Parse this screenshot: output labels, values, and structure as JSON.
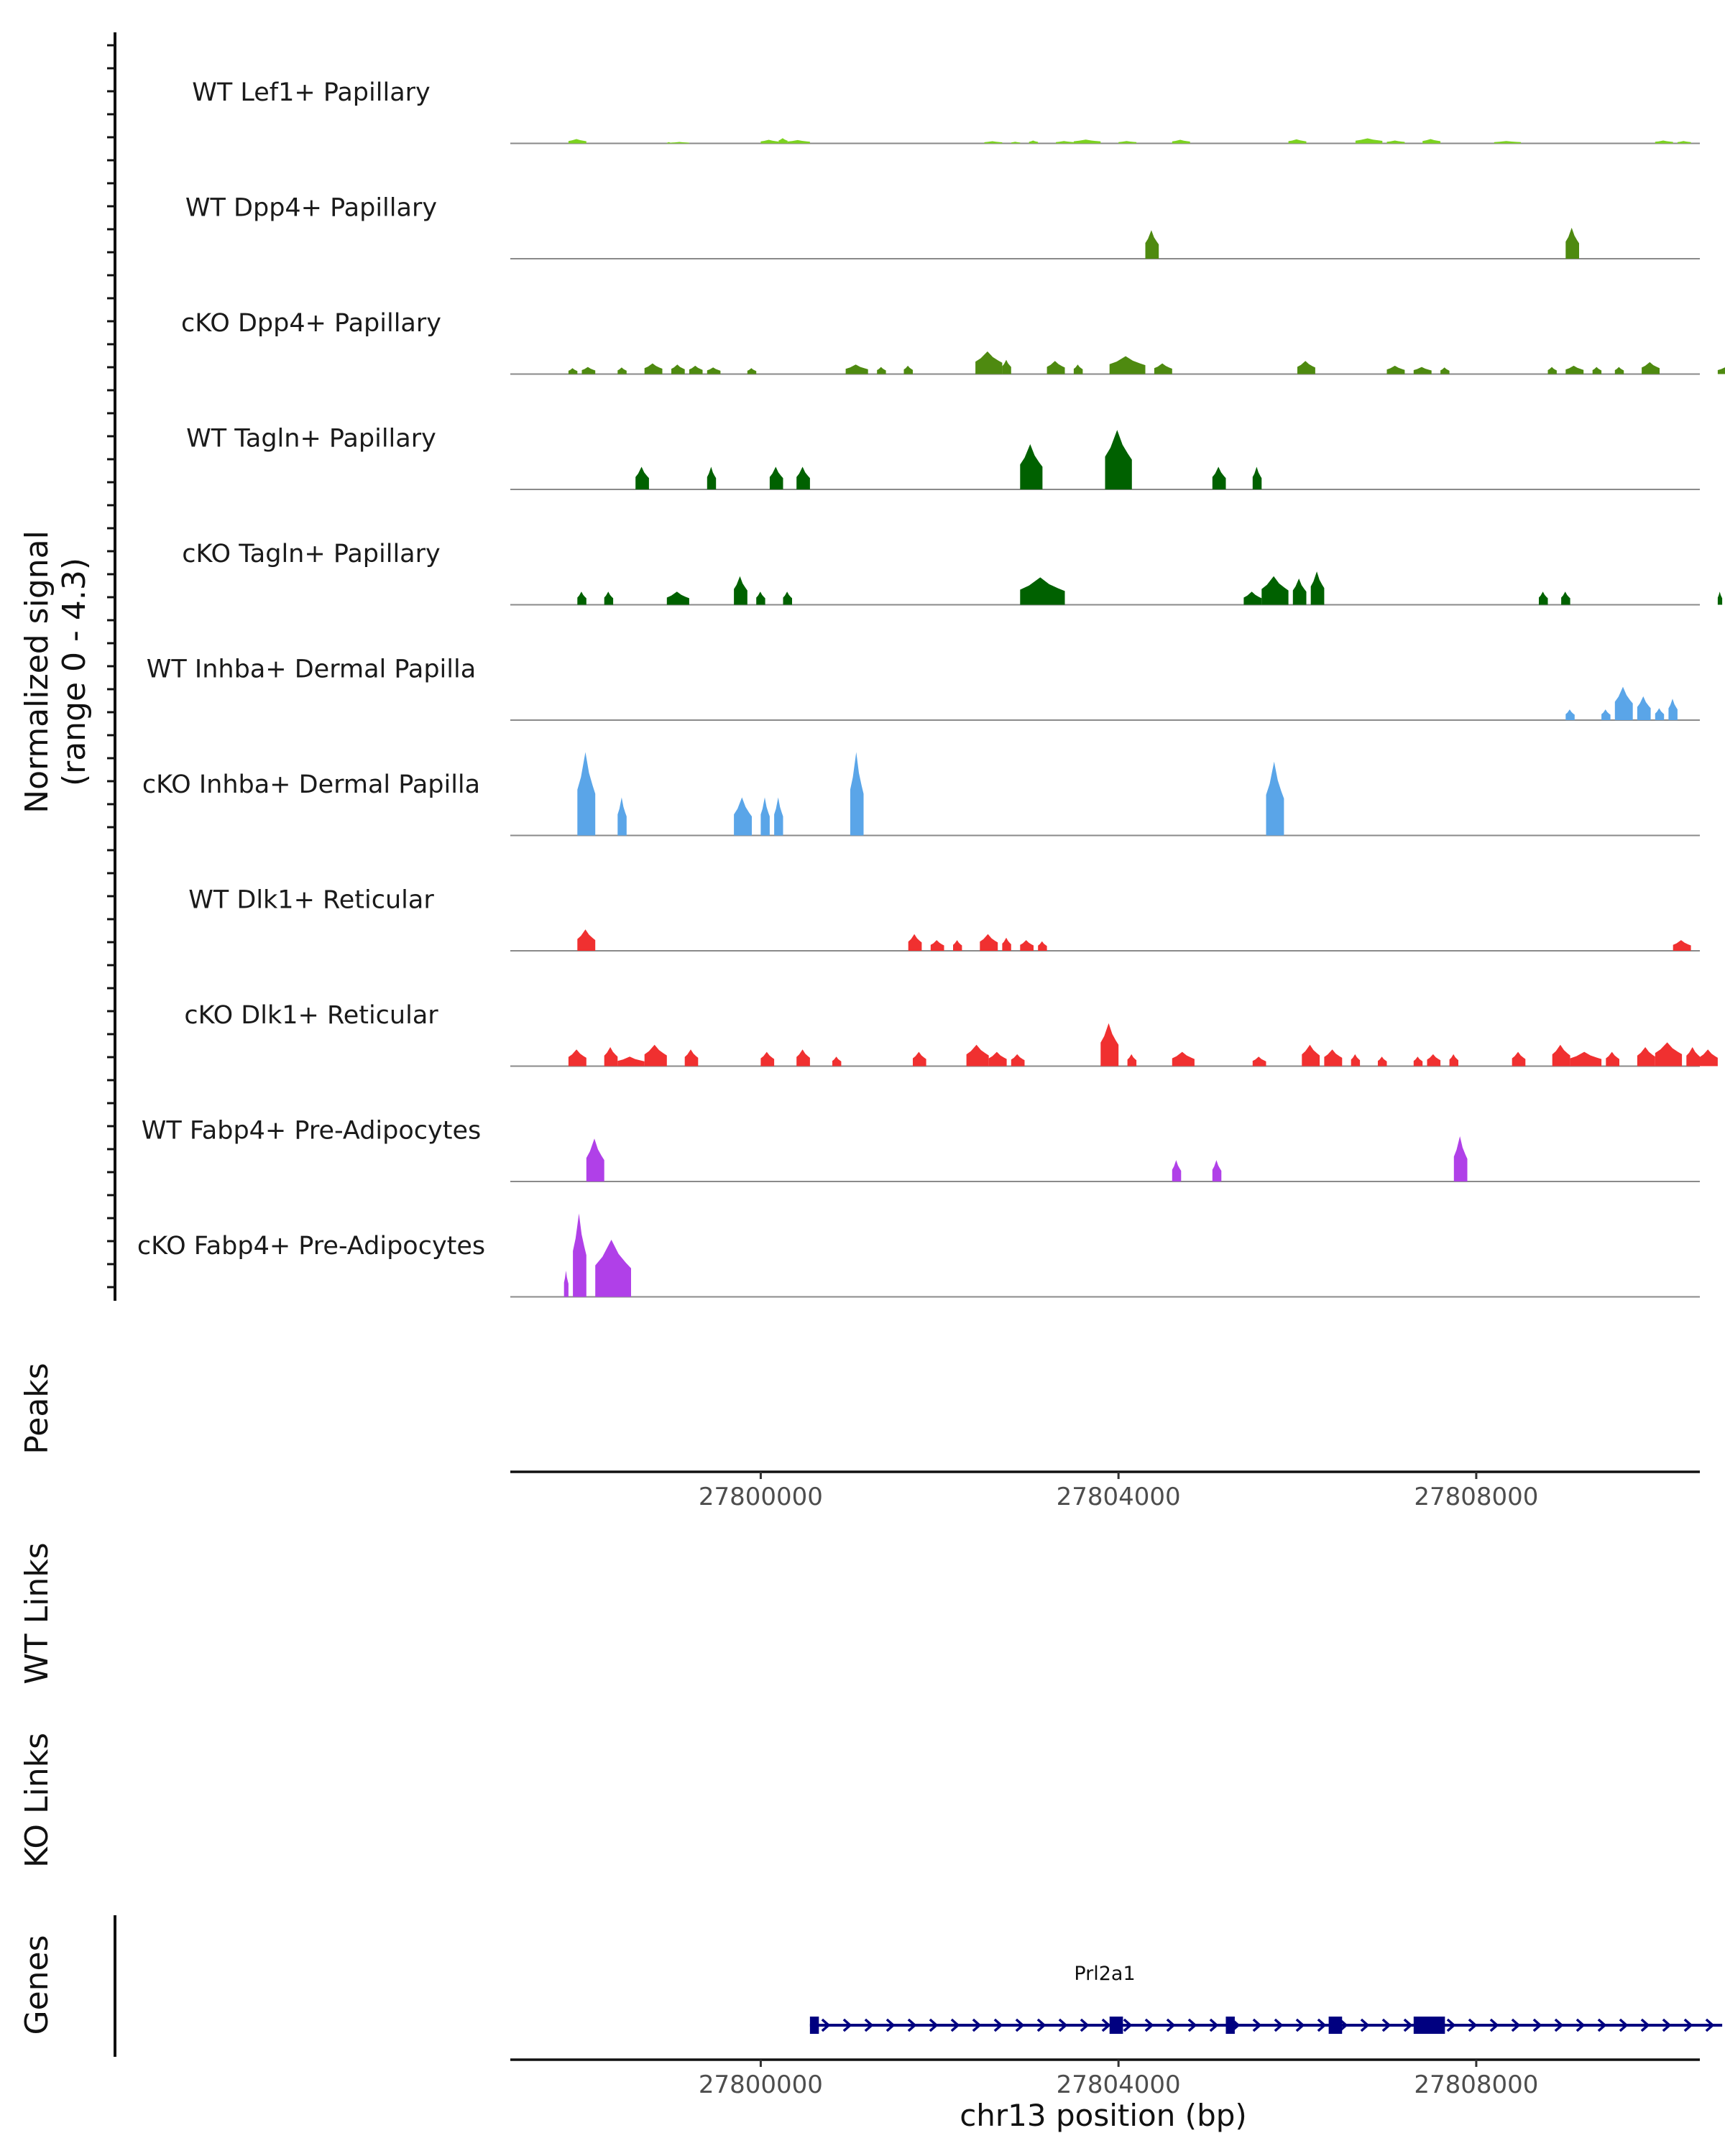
{
  "chart_data": {
    "type": "area",
    "chromosome": "chr13",
    "xlabel": "chr13 position (bp)",
    "xlim": [
      27797200,
      27810500
    ],
    "xticks": [
      27800000,
      27804000,
      27808000
    ],
    "xtick_labels": [
      "27800000",
      "27804000",
      "27808000"
    ],
    "coverage": {
      "ylabel": "Normalized signal",
      "ylabel_range": "(range 0 - 4.3)",
      "ylim": [
        0,
        4.3
      ],
      "tracks": [
        {
          "name": "WT Lef1+ Papillary",
          "color": "#7cd320",
          "peaks": [
            [
              27797850,
              27798050,
              0.18
            ],
            [
              27798950,
              27799000,
              0.05
            ],
            [
              27799000,
              27799200,
              0.06
            ],
            [
              27800000,
              27800200,
              0.15
            ],
            [
              27800200,
              27800300,
              0.22
            ],
            [
              27800300,
              27800550,
              0.14
            ],
            [
              27802500,
              27802700,
              0.09
            ],
            [
              27802800,
              27802900,
              0.07
            ],
            [
              27803000,
              27803100,
              0.12
            ],
            [
              27803300,
              27803500,
              0.1
            ],
            [
              27803500,
              27803800,
              0.16
            ],
            [
              27804000,
              27804200,
              0.1
            ],
            [
              27804600,
              27804800,
              0.15
            ],
            [
              27805900,
              27806100,
              0.17
            ],
            [
              27806650,
              27806950,
              0.21
            ],
            [
              27807000,
              27807200,
              0.12
            ],
            [
              27807400,
              27807600,
              0.18
            ],
            [
              27808200,
              27808500,
              0.1
            ],
            [
              27810000,
              27810200,
              0.12
            ],
            [
              27810250,
              27810400,
              0.1
            ]
          ]
        },
        {
          "name": "WT Dpp4+ Papillary",
          "color": "#4e8a10",
          "peaks": [
            [
              27804300,
              27804450,
              1.2
            ],
            [
              27809000,
              27809150,
              1.3
            ]
          ]
        },
        {
          "name": "cKO Dpp4+ Papillary",
          "color": "#4e8a10",
          "peaks": [
            [
              27797850,
              27797950,
              0.25
            ],
            [
              27798000,
              27798150,
              0.3
            ],
            [
              27798400,
              27798500,
              0.28
            ],
            [
              27798700,
              27798900,
              0.45
            ],
            [
              27799000,
              27799150,
              0.4
            ],
            [
              27799200,
              27799350,
              0.35
            ],
            [
              27799400,
              27799550,
              0.28
            ],
            [
              27799850,
              27799950,
              0.25
            ],
            [
              27800950,
              27801200,
              0.4
            ],
            [
              27801300,
              27801400,
              0.3
            ],
            [
              27801600,
              27801700,
              0.35
            ],
            [
              27802400,
              27802700,
              0.95
            ],
            [
              27802700,
              27802800,
              0.6
            ],
            [
              27803200,
              27803400,
              0.55
            ],
            [
              27803500,
              27803600,
              0.4
            ],
            [
              27803900,
              27804300,
              0.75
            ],
            [
              27804400,
              27804600,
              0.45
            ],
            [
              27806000,
              27806200,
              0.55
            ],
            [
              27807000,
              27807200,
              0.35
            ],
            [
              27807300,
              27807500,
              0.3
            ],
            [
              27807600,
              27807700,
              0.28
            ],
            [
              27808800,
              27808900,
              0.3
            ],
            [
              27809000,
              27809200,
              0.35
            ],
            [
              27809300,
              27809400,
              0.3
            ],
            [
              27809550,
              27809650,
              0.3
            ],
            [
              27809850,
              27810050,
              0.5
            ],
            [
              27810700,
              27810900,
              0.3
            ],
            [
              27810950,
              27811050,
              0.25
            ]
          ]
        },
        {
          "name": "WT Tagln+ Papillary",
          "color": "#006100",
          "peaks": [
            [
              27798600,
              27798750,
              0.95
            ],
            [
              27799400,
              27799500,
              0.95
            ],
            [
              27800100,
              27800250,
              0.95
            ],
            [
              27800400,
              27800550,
              0.95
            ],
            [
              27802900,
              27803150,
              1.9
            ],
            [
              27803850,
              27804150,
              2.5
            ],
            [
              27805050,
              27805200,
              0.95
            ],
            [
              27805500,
              27805600,
              0.95
            ]
          ]
        },
        {
          "name": "cKO Tagln+ Papillary",
          "color": "#006100",
          "peaks": [
            [
              27797950,
              27798050,
              0.55
            ],
            [
              27798250,
              27798350,
              0.55
            ],
            [
              27798950,
              27799200,
              0.55
            ],
            [
              27799700,
              27799850,
              1.2
            ],
            [
              27799950,
              27800050,
              0.55
            ],
            [
              27800250,
              27800350,
              0.55
            ],
            [
              27802900,
              27803400,
              1.15
            ],
            [
              27805400,
              27805600,
              0.55
            ],
            [
              27805600,
              27805900,
              1.2
            ],
            [
              27805950,
              27806100,
              1.1
            ],
            [
              27806150,
              27806300,
              1.4
            ],
            [
              27808700,
              27808800,
              0.55
            ],
            [
              27808950,
              27809050,
              0.55
            ],
            [
              27810700,
              27810750,
              0.55
            ]
          ]
        },
        {
          "name": "WT Inhba+ Dermal Papilla",
          "color": "#5aa5e8",
          "peaks": [
            [
              27809000,
              27809100,
              0.45
            ],
            [
              27809400,
              27809500,
              0.45
            ],
            [
              27809550,
              27809750,
              1.4
            ],
            [
              27809800,
              27809950,
              1.0
            ],
            [
              27810000,
              27810100,
              0.5
            ],
            [
              27810150,
              27810250,
              0.9
            ]
          ]
        },
        {
          "name": "cKO Inhba+ Dermal Papilla",
          "color": "#5aa5e8",
          "peaks": [
            [
              27797950,
              27798150,
              3.5
            ],
            [
              27798400,
              27798500,
              1.6
            ],
            [
              27799700,
              27799900,
              1.6
            ],
            [
              27800000,
              27800100,
              1.6
            ],
            [
              27800150,
              27800250,
              1.6
            ],
            [
              27801000,
              27801150,
              3.5
            ],
            [
              27805650,
              27805850,
              3.1
            ]
          ]
        },
        {
          "name": "WT Dlk1+ Reticular",
          "color": "#f03030",
          "peaks": [
            [
              27797950,
              27798150,
              0.9
            ],
            [
              27801650,
              27801800,
              0.7
            ],
            [
              27801900,
              27802050,
              0.45
            ],
            [
              27802150,
              27802250,
              0.45
            ],
            [
              27802450,
              27802650,
              0.7
            ],
            [
              27802700,
              27802800,
              0.55
            ],
            [
              27802900,
              27803050,
              0.45
            ],
            [
              27803100,
              27803200,
              0.4
            ],
            [
              27810200,
              27810400,
              0.45
            ]
          ]
        },
        {
          "name": "cKO Dlk1+ Reticular",
          "color": "#f03030",
          "peaks": [
            [
              27797850,
              27798050,
              0.7
            ],
            [
              27798250,
              27798400,
              0.8
            ],
            [
              27798400,
              27798700,
              0.4
            ],
            [
              27798700,
              27798950,
              0.9
            ],
            [
              27799150,
              27799300,
              0.7
            ],
            [
              27800000,
              27800150,
              0.6
            ],
            [
              27800400,
              27800550,
              0.7
            ],
            [
              27800800,
              27800900,
              0.4
            ],
            [
              27801700,
              27801850,
              0.6
            ],
            [
              27802300,
              27802550,
              0.9
            ],
            [
              27802550,
              27802750,
              0.6
            ],
            [
              27802800,
              27802950,
              0.5
            ],
            [
              27803800,
              27804000,
              1.8
            ],
            [
              27804100,
              27804200,
              0.5
            ],
            [
              27804600,
              27804850,
              0.6
            ],
            [
              27805500,
              27805650,
              0.4
            ],
            [
              27806050,
              27806250,
              0.9
            ],
            [
              27806300,
              27806500,
              0.7
            ],
            [
              27806600,
              27806700,
              0.5
            ],
            [
              27806900,
              27807000,
              0.4
            ],
            [
              27807300,
              27807400,
              0.4
            ],
            [
              27807450,
              27807600,
              0.5
            ],
            [
              27807700,
              27807800,
              0.5
            ],
            [
              27808400,
              27808550,
              0.6
            ],
            [
              27808850,
              27809050,
              0.9
            ],
            [
              27809050,
              27809400,
              0.6
            ],
            [
              27809450,
              27809600,
              0.6
            ],
            [
              27809800,
              27810000,
              0.8
            ],
            [
              27810000,
              27810300,
              1.0
            ],
            [
              27810350,
              27810500,
              0.8
            ],
            [
              27810500,
              27810700,
              0.7
            ]
          ]
        },
        {
          "name": "WT Fabp4+ Pre-Adipocytes",
          "color": "#b040e8",
          "peaks": [
            [
              27798050,
              27798250,
              1.8
            ],
            [
              27804600,
              27804700,
              0.9
            ],
            [
              27805050,
              27805150,
              0.9
            ],
            [
              27807750,
              27807900,
              1.9
            ]
          ]
        },
        {
          "name": "cKO Fabp4+ Pre-Adipocytes",
          "color": "#b040e8",
          "peaks": [
            [
              27797800,
              27797850,
              1.1
            ],
            [
              27797900,
              27798050,
              3.5
            ],
            [
              27798150,
              27798550,
              2.4
            ]
          ]
        }
      ]
    },
    "peaks_track": {
      "label": "Peaks"
    },
    "links_tracks": [
      {
        "label": "WT Links"
      },
      {
        "label": "KO Links"
      }
    ],
    "genes_track": {
      "label": "Genes",
      "color": "#000080",
      "gene": {
        "name": "Prl2a1",
        "start": 27800550,
        "end": 27810750,
        "strand": "+",
        "exons": [
          [
            27800550,
            27800650
          ],
          [
            27803900,
            27804050
          ],
          [
            27805200,
            27805300
          ],
          [
            27806350,
            27806500
          ],
          [
            27807300,
            27807650
          ]
        ]
      }
    }
  }
}
